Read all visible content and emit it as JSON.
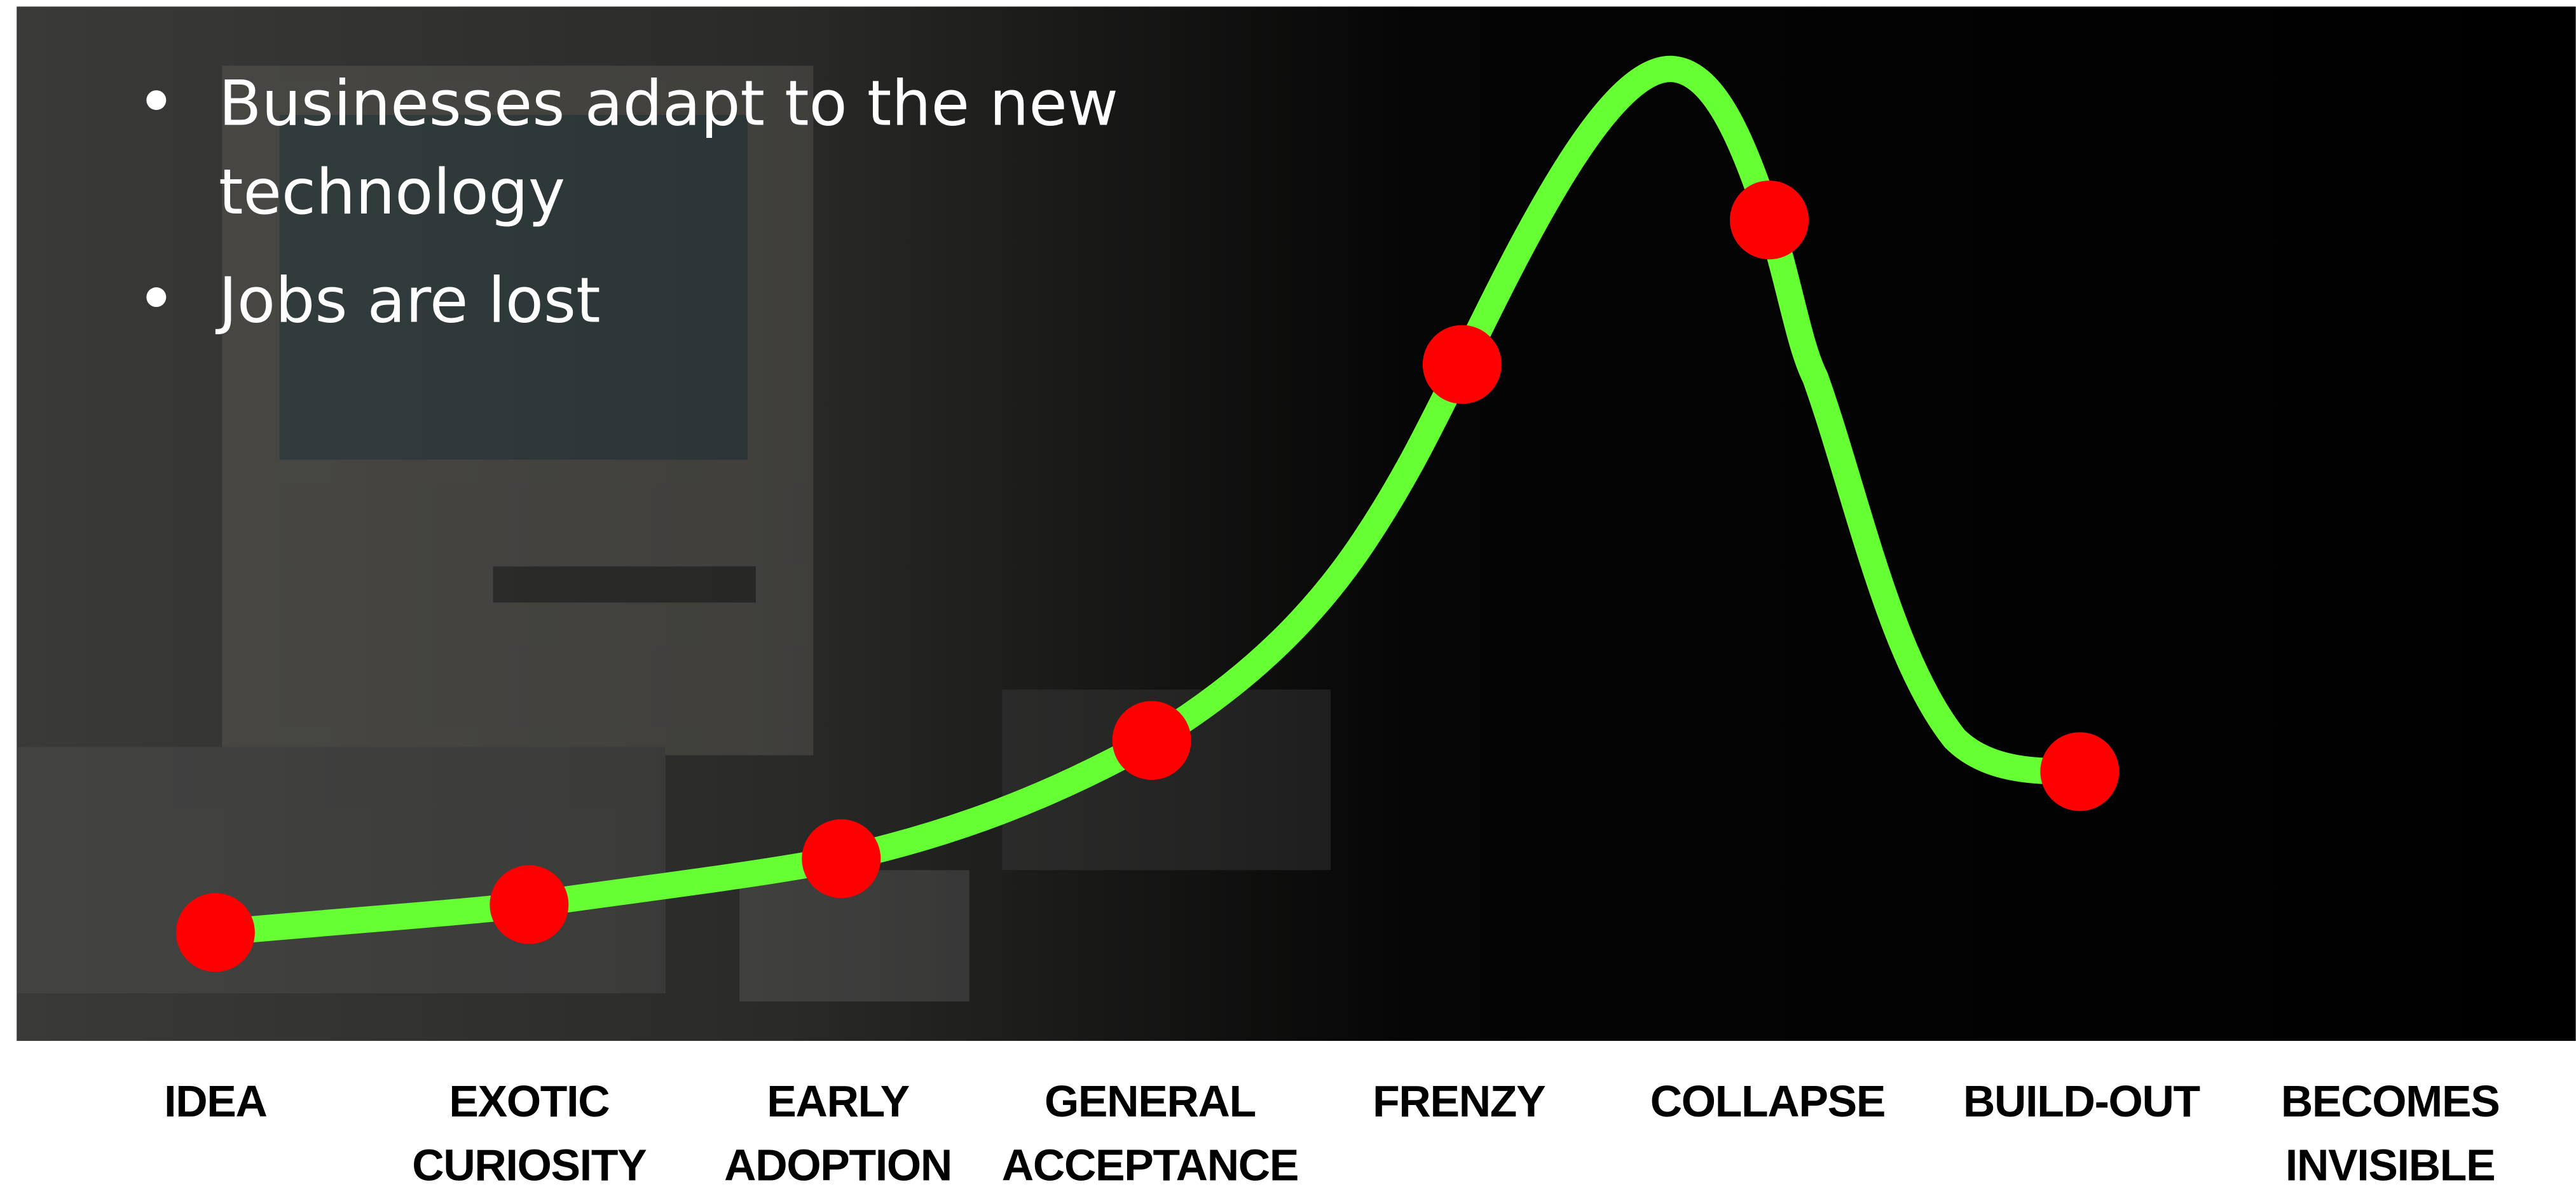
{
  "bullets": [
    {
      "lines": [
        "Businesses adapt to the new",
        "technology"
      ]
    },
    {
      "lines": [
        "Jobs are lost"
      ]
    }
  ],
  "stages": [
    {
      "lines": [
        "IDEA"
      ]
    },
    {
      "lines": [
        "EXOTIC",
        "CURIOSITY"
      ]
    },
    {
      "lines": [
        "EARLY",
        "ADOPTION"
      ]
    },
    {
      "lines": [
        "GENERAL",
        "ACCEPTANCE"
      ]
    },
    {
      "lines": [
        "FRENZY"
      ]
    },
    {
      "lines": [
        "COLLAPSE"
      ]
    },
    {
      "lines": [
        "BUILD-OUT"
      ]
    },
    {
      "lines": [
        "BECOMES",
        "INVISIBLE"
      ]
    }
  ]
}
